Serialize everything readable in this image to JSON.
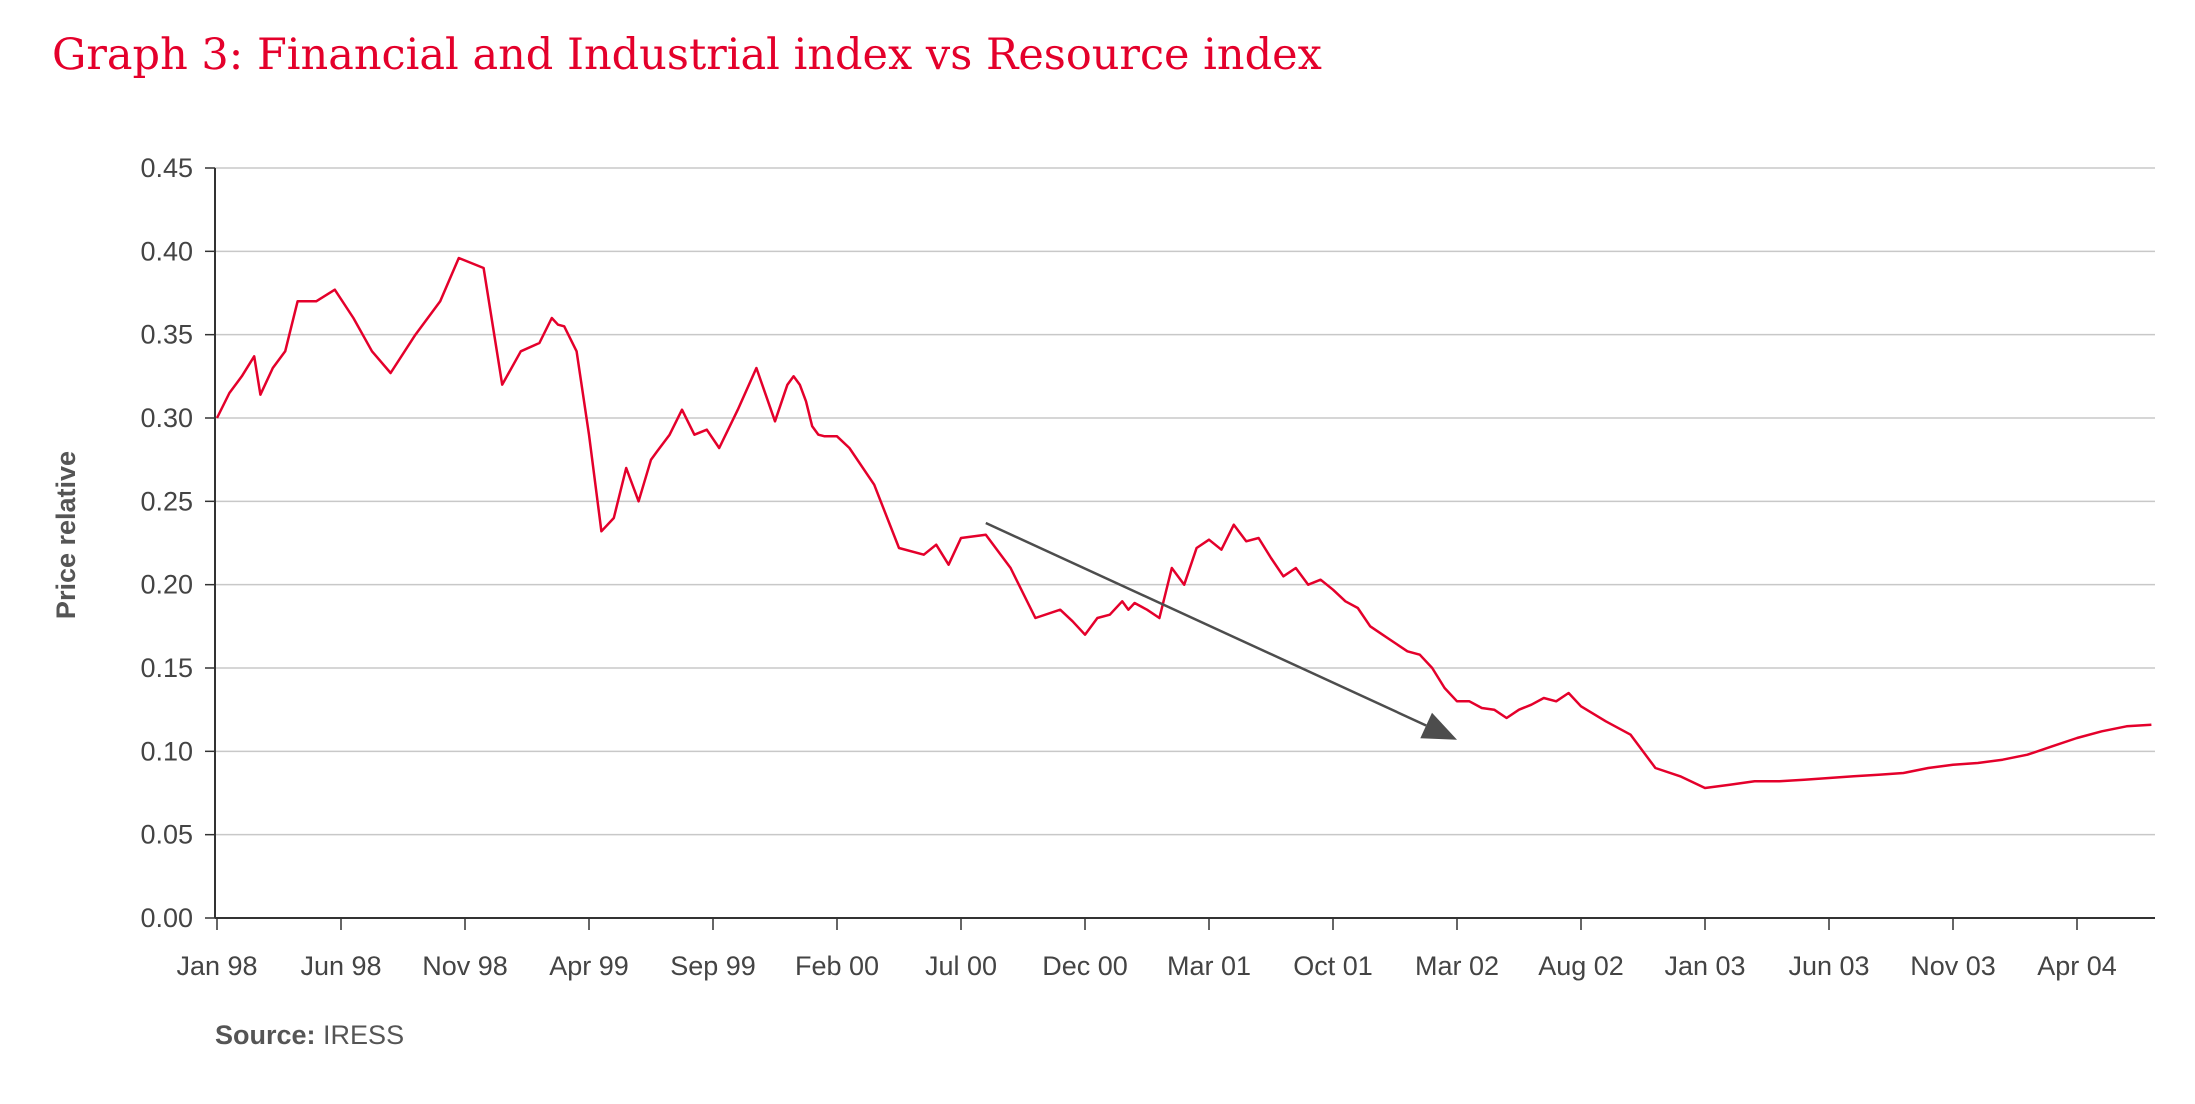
{
  "chart_data": {
    "type": "line",
    "title": "Graph 3: Financial and Industrial index vs Resource index",
    "xlabel": "",
    "ylabel": "Price relative",
    "ylim": [
      0,
      0.45
    ],
    "y_ticks": [
      "0.00",
      "0.05",
      "0.10",
      "0.15",
      "0.20",
      "0.25",
      "0.30",
      "0.35",
      "0.40",
      "0.45"
    ],
    "x_ticks": [
      "Jan 98",
      "Jun 98",
      "Nov 98",
      "Apr 99",
      "Sep 99",
      "Feb 00",
      "Jul 00",
      "Dec 00",
      "Mar 01",
      "Oct 01",
      "Mar 02",
      "Aug 02",
      "Jan 03",
      "Jun 03",
      "Nov 03",
      "Apr 04"
    ],
    "grid": "horizontal",
    "colors": {
      "series": "#e4002b",
      "title": "#e4002b",
      "arrow": "#4d4d4d",
      "grid": "#c8c8c8",
      "axis": "#333333"
    },
    "series": [
      {
        "name": "",
        "x": [
          0,
          0.1,
          0.2,
          0.3,
          0.35,
          0.45,
          0.55,
          0.65,
          0.8,
          0.95,
          1.1,
          1.25,
          1.4,
          1.6,
          1.8,
          1.95,
          2.05,
          2.15,
          2.3,
          2.45,
          2.6,
          2.7,
          2.75,
          2.8,
          2.9,
          3.0,
          3.1,
          3.2,
          3.3,
          3.4,
          3.5,
          3.55,
          3.65,
          3.75,
          3.85,
          3.95,
          4.05,
          4.2,
          4.35,
          4.5,
          4.6,
          4.65,
          4.7,
          4.75,
          4.8,
          4.85,
          4.9,
          4.95,
          5.0,
          5.1,
          5.3,
          5.5,
          5.7,
          5.8,
          5.9,
          6.0,
          6.2,
          6.4,
          6.6,
          6.8,
          6.9,
          7.0,
          7.1,
          7.2,
          7.3,
          7.35,
          7.4,
          7.5,
          7.6,
          7.7,
          7.8,
          7.9,
          8.0,
          8.1,
          8.2,
          8.3,
          8.4,
          8.5,
          8.6,
          8.7,
          8.8,
          8.9,
          9.0,
          9.1,
          9.2,
          9.3,
          9.4,
          9.5,
          9.6,
          9.7,
          9.8,
          9.9,
          10.0,
          10.1,
          10.2,
          10.3,
          10.4,
          10.5,
          10.6,
          10.7,
          10.8,
          10.9,
          11.0,
          11.2,
          11.4,
          11.6,
          11.8,
          12.0,
          12.2,
          12.4,
          12.6,
          12.8,
          13.0,
          13.2,
          13.4,
          13.6,
          13.8,
          14.0,
          14.2,
          14.4,
          14.6,
          14.8,
          15.0,
          15.2,
          15.4,
          15.6
        ],
        "y": [
          0.3,
          0.315,
          0.325,
          0.337,
          0.314,
          0.33,
          0.34,
          0.37,
          0.37,
          0.377,
          0.36,
          0.34,
          0.327,
          0.35,
          0.37,
          0.396,
          0.393,
          0.39,
          0.32,
          0.34,
          0.345,
          0.36,
          0.356,
          0.355,
          0.34,
          0.29,
          0.232,
          0.24,
          0.27,
          0.25,
          0.275,
          0.28,
          0.29,
          0.305,
          0.29,
          0.293,
          0.282,
          0.305,
          0.33,
          0.298,
          0.32,
          0.325,
          0.32,
          0.31,
          0.295,
          0.29,
          0.289,
          0.289,
          0.289,
          0.282,
          0.26,
          0.222,
          0.218,
          0.224,
          0.212,
          0.228,
          0.23,
          0.21,
          0.18,
          0.185,
          0.178,
          0.17,
          0.18,
          0.182,
          0.19,
          0.185,
          0.189,
          0.185,
          0.18,
          0.21,
          0.2,
          0.222,
          0.227,
          0.221,
          0.236,
          0.226,
          0.228,
          0.216,
          0.205,
          0.21,
          0.2,
          0.203,
          0.197,
          0.19,
          0.186,
          0.175,
          0.17,
          0.165,
          0.16,
          0.158,
          0.15,
          0.138,
          0.13,
          0.13,
          0.126,
          0.125,
          0.12,
          0.125,
          0.128,
          0.132,
          0.13,
          0.135,
          0.127,
          0.118,
          0.11,
          0.09,
          0.085,
          0.078,
          0.08,
          0.082,
          0.082,
          0.083,
          0.084,
          0.085,
          0.086,
          0.087,
          0.09,
          0.092,
          0.093,
          0.095,
          0.098,
          0.103,
          0.108,
          0.112,
          0.115,
          0.116
        ]
      }
    ],
    "annotations": [
      {
        "type": "arrow",
        "from": [
          6.2,
          0.237
        ],
        "to": [
          10.0,
          0.107
        ]
      }
    ]
  },
  "source": {
    "label": "Source:",
    "value": "IRESS"
  }
}
